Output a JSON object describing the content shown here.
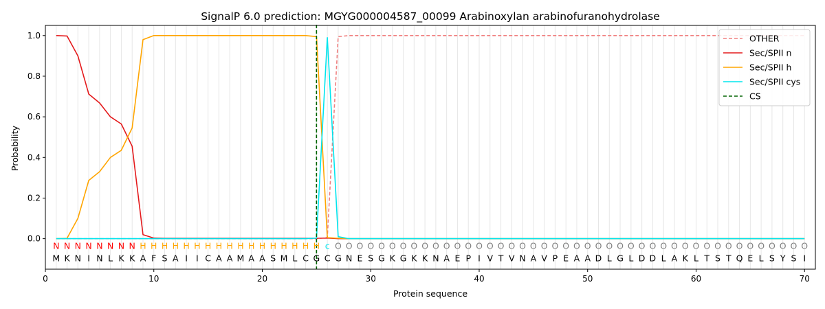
{
  "chart_data": {
    "type": "line",
    "title": "SignalP 6.0 prediction: MGYG000004587_00099 Arabinoxylan arabinofuranohydrolase",
    "xlabel": "Protein sequence",
    "ylabel": "Probability",
    "xlim": [
      0,
      71
    ],
    "ylim": [
      -0.15,
      1.05
    ],
    "x_ticks": [
      0,
      10,
      20,
      30,
      40,
      50,
      60,
      70
    ],
    "y_ticks": [
      0.0,
      0.2,
      0.4,
      0.6,
      0.8,
      1.0
    ],
    "x_tick_labels": [
      "0",
      "10",
      "20",
      "30",
      "40",
      "50",
      "60",
      "70"
    ],
    "y_tick_labels": [
      "0.0",
      "0.2",
      "0.4",
      "0.6",
      "0.8",
      "1.0"
    ],
    "grid": "vertical lines at every residue",
    "legend_position": "top-right",
    "sequence": [
      "M",
      "K",
      "N",
      "I",
      "N",
      "L",
      "K",
      "K",
      "A",
      "F",
      "S",
      "A",
      "I",
      "I",
      "C",
      "A",
      "A",
      "M",
      "A",
      "A",
      "S",
      "M",
      "L",
      "C",
      "G",
      "C",
      "G",
      "N",
      "E",
      "S",
      "G",
      "K",
      "G",
      "K",
      "K",
      "N",
      "A",
      "E",
      "P",
      "I",
      "V",
      "T",
      "V",
      "N",
      "A",
      "V",
      "P",
      "E",
      "A",
      "A",
      "D",
      "L",
      "G",
      "L",
      "D",
      "D",
      "L",
      "A",
      "K",
      "L",
      "T",
      "S",
      "T",
      "Q",
      "E",
      "L",
      "S",
      "Y",
      "S",
      "I"
    ],
    "annotation": [
      "N",
      "N",
      "N",
      "N",
      "N",
      "N",
      "N",
      "N",
      "H",
      "H",
      "H",
      "H",
      "H",
      "H",
      "H",
      "H",
      "H",
      "H",
      "H",
      "H",
      "H",
      "H",
      "H",
      "H",
      "H",
      "c",
      "O",
      "O",
      "O",
      "O",
      "O",
      "O",
      "O",
      "O",
      "O",
      "O",
      "O",
      "O",
      "O",
      "O",
      "O",
      "O",
      "O",
      "O",
      "O",
      "O",
      "O",
      "O",
      "O",
      "O",
      "O",
      "O",
      "O",
      "O",
      "O",
      "O",
      "O",
      "O",
      "O",
      "O",
      "O",
      "O",
      "O",
      "O",
      "O",
      "O",
      "O",
      "O",
      "O",
      "O"
    ],
    "annotation_colors": {
      "N": "#ff0000",
      "H": "#ffa500",
      "c": "#00e5ee",
      "O": "#808080"
    },
    "series": [
      {
        "name": "OTHER",
        "color": "#f08080",
        "style": "dashed",
        "x": [
          1,
          2,
          3,
          4,
          5,
          6,
          7,
          8,
          9,
          10,
          11,
          12,
          13,
          14,
          15,
          16,
          17,
          18,
          19,
          20,
          21,
          22,
          23,
          24,
          25,
          26,
          27,
          28,
          29,
          30,
          31,
          32,
          33,
          34,
          35,
          36,
          37,
          38,
          39,
          40,
          41,
          42,
          43,
          44,
          45,
          46,
          47,
          48,
          49,
          50,
          51,
          52,
          53,
          54,
          55,
          56,
          57,
          58,
          59,
          60,
          61,
          62,
          63,
          64,
          65,
          66,
          67,
          68,
          69,
          70
        ],
        "values": [
          0,
          0,
          0,
          0,
          0,
          0,
          0,
          0,
          0,
          0,
          0,
          0,
          0,
          0,
          0,
          0,
          0,
          0,
          0,
          0,
          0,
          0,
          0,
          0,
          0,
          0.005,
          0.995,
          1,
          1,
          1,
          1,
          1,
          1,
          1,
          1,
          1,
          1,
          1,
          1,
          1,
          1,
          1,
          1,
          1,
          1,
          1,
          1,
          1,
          1,
          1,
          1,
          1,
          1,
          1,
          1,
          1,
          1,
          1,
          1,
          1,
          1,
          1,
          1,
          1,
          1,
          1,
          1,
          1,
          1,
          1
        ]
      },
      {
        "name": "Sec/SPII n",
        "color": "#e41a1c",
        "style": "solid",
        "x": [
          1,
          2,
          3,
          4,
          5,
          6,
          7,
          8,
          9,
          10,
          11,
          12,
          13,
          14,
          15,
          16,
          17,
          18,
          19,
          20,
          21,
          22,
          23,
          24,
          25,
          26,
          27,
          28,
          29,
          30,
          31,
          32,
          33,
          34,
          35,
          36,
          37,
          38,
          39,
          40,
          41,
          42,
          43,
          44,
          45,
          46,
          47,
          48,
          49,
          50,
          51,
          52,
          53,
          54,
          55,
          56,
          57,
          58,
          59,
          60,
          61,
          62,
          63,
          64,
          65,
          66,
          67,
          68,
          69,
          70
        ],
        "values": [
          1.0,
          0.998,
          0.9,
          0.712,
          0.668,
          0.6,
          0.565,
          0.455,
          0.02,
          0.003,
          0.002,
          0.002,
          0.002,
          0.002,
          0.002,
          0.002,
          0.002,
          0.002,
          0.002,
          0.002,
          0.002,
          0.002,
          0.002,
          0.002,
          0.002,
          0.003,
          0,
          0,
          0,
          0,
          0,
          0,
          0,
          0,
          0,
          0,
          0,
          0,
          0,
          0,
          0,
          0,
          0,
          0,
          0,
          0,
          0,
          0,
          0,
          0,
          0,
          0,
          0,
          0,
          0,
          0,
          0,
          0,
          0,
          0,
          0,
          0,
          0,
          0,
          0,
          0,
          0,
          0,
          0,
          0
        ]
      },
      {
        "name": "Sec/SPII h",
        "color": "#ffa500",
        "style": "solid",
        "x": [
          1,
          2,
          3,
          4,
          5,
          6,
          7,
          8,
          9,
          10,
          11,
          12,
          13,
          14,
          15,
          16,
          17,
          18,
          19,
          20,
          21,
          22,
          23,
          24,
          25,
          26,
          27,
          28,
          29,
          30,
          31,
          32,
          33,
          34,
          35,
          36,
          37,
          38,
          39,
          40,
          41,
          42,
          43,
          44,
          45,
          46,
          47,
          48,
          49,
          50,
          51,
          52,
          53,
          54,
          55,
          56,
          57,
          58,
          59,
          60,
          61,
          62,
          63,
          64,
          65,
          66,
          67,
          68,
          69,
          70
        ],
        "values": [
          0,
          0.002,
          0.1,
          0.287,
          0.33,
          0.4,
          0.435,
          0.545,
          0.98,
          1.0,
          1.0,
          1.0,
          1.0,
          1.0,
          1.0,
          1.0,
          1.0,
          1.0,
          1.0,
          1.0,
          1.0,
          1.0,
          1.0,
          1.0,
          0.995,
          0.005,
          0.002,
          0,
          0,
          0,
          0,
          0,
          0,
          0,
          0,
          0,
          0,
          0,
          0,
          0,
          0,
          0,
          0,
          0,
          0,
          0,
          0,
          0,
          0,
          0,
          0,
          0,
          0,
          0,
          0,
          0,
          0,
          0,
          0,
          0,
          0,
          0,
          0,
          0,
          0,
          0,
          0,
          0,
          0,
          0
        ]
      },
      {
        "name": "Sec/SPII cys",
        "color": "#00e5ee",
        "style": "solid",
        "x": [
          1,
          2,
          3,
          4,
          5,
          6,
          7,
          8,
          9,
          10,
          11,
          12,
          13,
          14,
          15,
          16,
          17,
          18,
          19,
          20,
          21,
          22,
          23,
          24,
          25,
          26,
          27,
          28,
          29,
          30,
          31,
          32,
          33,
          34,
          35,
          36,
          37,
          38,
          39,
          40,
          41,
          42,
          43,
          44,
          45,
          46,
          47,
          48,
          49,
          50,
          51,
          52,
          53,
          54,
          55,
          56,
          57,
          58,
          59,
          60,
          61,
          62,
          63,
          64,
          65,
          66,
          67,
          68,
          69,
          70
        ],
        "values": [
          0,
          0,
          0,
          0,
          0,
          0,
          0,
          0,
          0,
          0,
          0,
          0,
          0,
          0,
          0,
          0,
          0,
          0,
          0,
          0,
          0,
          0,
          0,
          0,
          0.003,
          0.99,
          0.01,
          0,
          0,
          0,
          0,
          0,
          0,
          0,
          0,
          0,
          0,
          0,
          0,
          0,
          0,
          0,
          0,
          0,
          0,
          0,
          0,
          0,
          0,
          0,
          0,
          0,
          0,
          0,
          0,
          0,
          0,
          0,
          0,
          0,
          0,
          0,
          0,
          0,
          0,
          0,
          0,
          0,
          0,
          0
        ]
      }
    ],
    "cs": {
      "name": "CS",
      "color": "#006400",
      "style": "dashed",
      "x": 25
    }
  }
}
